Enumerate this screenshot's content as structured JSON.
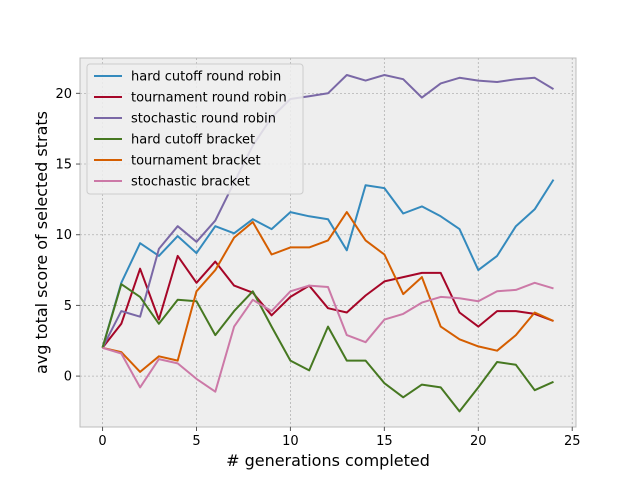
{
  "chart_data": {
    "type": "line",
    "xlabel": "# generations completed",
    "ylabel": "avg total score of selected strats",
    "xlim": [
      -1.2,
      25.2
    ],
    "ylim": [
      -3.6,
      22.5
    ],
    "xticks": [
      0,
      5,
      10,
      15,
      20,
      25
    ],
    "yticks": [
      0,
      5,
      10,
      15,
      20
    ],
    "grid": true,
    "legend_position": "top-left",
    "x": [
      0,
      1,
      2,
      3,
      4,
      5,
      6,
      7,
      8,
      9,
      10,
      11,
      12,
      13,
      14,
      15,
      16,
      17,
      18,
      19,
      20,
      21,
      22,
      23,
      24
    ],
    "series": [
      {
        "name": "hard cutoff round robin",
        "color": "#348abd",
        "values": [
          2.0,
          6.6,
          9.4,
          8.5,
          9.9,
          8.7,
          10.6,
          10.1,
          11.1,
          10.4,
          11.6,
          11.3,
          11.1,
          8.9,
          13.5,
          13.3,
          11.5,
          12.0,
          11.3,
          10.4,
          7.5,
          8.5,
          10.6,
          11.8,
          13.9
        ]
      },
      {
        "name": "tournament round robin",
        "color": "#a60628",
        "values": [
          2.0,
          3.7,
          7.6,
          4.0,
          8.5,
          6.6,
          8.1,
          6.4,
          5.9,
          4.3,
          5.6,
          6.4,
          4.8,
          4.5,
          5.7,
          6.7,
          7.0,
          7.3,
          7.3,
          4.5,
          3.5,
          4.6,
          4.6,
          4.4,
          3.9
        ]
      },
      {
        "name": "stochastic round robin",
        "color": "#7a68a6",
        "values": [
          2.0,
          4.6,
          4.2,
          9.0,
          10.6,
          9.5,
          11.0,
          13.7,
          16.3,
          18.3,
          19.6,
          19.8,
          20.0,
          21.3,
          20.9,
          21.3,
          21.0,
          19.7,
          20.7,
          21.1,
          20.9,
          20.8,
          21.0,
          21.1,
          20.3
        ]
      },
      {
        "name": "hard cutoff bracket",
        "color": "#467821",
        "values": [
          2.0,
          6.5,
          5.6,
          3.7,
          5.4,
          5.3,
          2.9,
          4.6,
          6.0,
          3.5,
          1.1,
          0.4,
          3.5,
          1.1,
          1.1,
          -0.5,
          -1.5,
          -0.6,
          -0.8,
          -2.5,
          -0.8,
          1.0,
          0.8,
          -1.0,
          -0.4
        ]
      },
      {
        "name": "tournament bracket",
        "color": "#d55e00",
        "values": [
          2.0,
          1.7,
          0.3,
          1.4,
          1.1,
          6.0,
          7.5,
          9.8,
          10.9,
          8.6,
          9.1,
          9.1,
          9.6,
          11.6,
          9.6,
          8.6,
          5.8,
          7.0,
          3.5,
          2.6,
          2.1,
          1.8,
          2.9,
          4.5,
          3.9
        ]
      },
      {
        "name": "stochastic bracket",
        "color": "#cc79a7",
        "values": [
          2.0,
          1.6,
          -0.8,
          1.2,
          0.9,
          -0.2,
          -1.1,
          3.5,
          5.4,
          4.6,
          6.0,
          6.4,
          6.3,
          2.9,
          2.4,
          4.0,
          4.4,
          5.2,
          5.6,
          5.5,
          5.3,
          6.0,
          6.1,
          6.6,
          6.2
        ]
      }
    ]
  }
}
